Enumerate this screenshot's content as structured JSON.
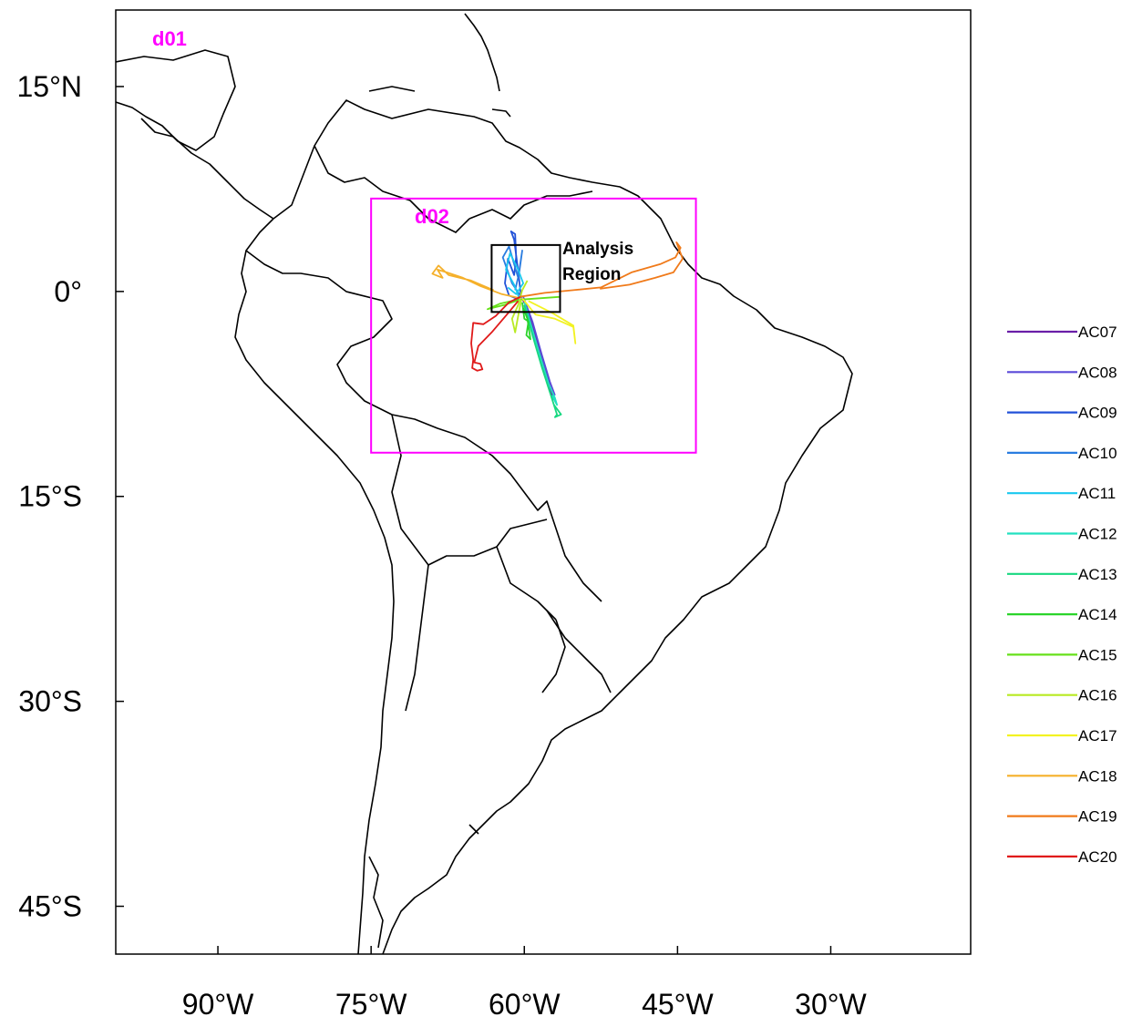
{
  "map": {
    "domains": [
      {
        "id": "d01",
        "label": "d01",
        "color": "#ff00ff"
      },
      {
        "id": "d02",
        "label": "d02",
        "color": "#ff00ff",
        "bounds": {
          "lon_min": -75,
          "lon_max": -43.2,
          "lat_min": -11.8,
          "lat_max": 6.8
        }
      }
    ],
    "analysis_region": {
      "label_line1": "Analysis",
      "label_line2": "Region",
      "bounds": {
        "lon_min": -63.2,
        "lon_max": -56.5,
        "lat_min": -1.5,
        "lat_max": 3.4
      }
    },
    "lat_ticks": [
      {
        "value": 15,
        "label": "15°N"
      },
      {
        "value": 0,
        "label": "0°"
      },
      {
        "value": -15,
        "label": "15°S"
      },
      {
        "value": -30,
        "label": "30°S"
      },
      {
        "value": -45,
        "label": "45°S"
      }
    ],
    "lon_ticks": [
      {
        "value": -90,
        "label": "90°W"
      },
      {
        "value": -75,
        "label": "75°W"
      },
      {
        "value": -60,
        "label": "60°W"
      },
      {
        "value": -45,
        "label": "45°W"
      },
      {
        "value": -30,
        "label": "30°W"
      }
    ],
    "extent": {
      "lon_min": -100,
      "lon_max": -16.3,
      "lat_min": -48.5,
      "lat_max": 20.6
    }
  },
  "flights": [
    {
      "name": "AC07",
      "color": "#6a1fa8",
      "path": [
        [
          -60.2,
          -0.5
        ],
        [
          -59.6,
          -1.5
        ],
        [
          -59.0,
          -3.0
        ],
        [
          -58.2,
          -5.2
        ],
        [
          -57.4,
          -7.2
        ],
        [
          -57.1,
          -7.9
        ],
        [
          -57.5,
          -7.3
        ],
        [
          -58.1,
          -5.6
        ],
        [
          -59.2,
          -2.8
        ],
        [
          -60.0,
          -1.0
        ]
      ]
    },
    {
      "name": "AC08",
      "color": "#5b4ad8",
      "path": [
        [
          -60.1,
          -0.4
        ],
        [
          -59.2,
          -2.2
        ],
        [
          -58.3,
          -4.6
        ],
        [
          -57.5,
          -6.6
        ],
        [
          -57.0,
          -7.6
        ]
      ]
    },
    {
      "name": "AC09",
      "color": "#2252d8",
      "path": [
        [
          -60.3,
          -0.5
        ],
        [
          -60.6,
          1.5
        ],
        [
          -61.0,
          3.8
        ],
        [
          -61.3,
          4.4
        ],
        [
          -60.9,
          4.2
        ],
        [
          -60.8,
          2.5
        ],
        [
          -61.0,
          1.2
        ],
        [
          -61.6,
          2.4
        ],
        [
          -61.9,
          0.6
        ],
        [
          -61.5,
          -0.3
        ],
        [
          -60.5,
          -0.6
        ]
      ]
    },
    {
      "name": "AC10",
      "color": "#2a7de0",
      "path": [
        [
          -60.4,
          -0.3
        ],
        [
          -61.2,
          0.6
        ],
        [
          -62.1,
          2.5
        ],
        [
          -61.5,
          3.3
        ],
        [
          -61.0,
          2.0
        ],
        [
          -60.6,
          1.0
        ],
        [
          -60.2,
          3.0
        ],
        [
          -60.5,
          1.4
        ],
        [
          -60.9,
          0.1
        ]
      ]
    },
    {
      "name": "AC11",
      "color": "#1ac8ef",
      "path": [
        [
          -60.5,
          -0.5
        ],
        [
          -61.0,
          0.5
        ],
        [
          -61.8,
          1.6
        ],
        [
          -61.4,
          2.8
        ],
        [
          -60.6,
          1.6
        ],
        [
          -60.1,
          0.6
        ],
        [
          -60.8,
          -0.2
        ],
        [
          -61.6,
          0.3
        ]
      ]
    },
    {
      "name": "AC12",
      "color": "#22e0c0",
      "path": [
        [
          -60.0,
          -0.8
        ],
        [
          -59.4,
          -2.3
        ],
        [
          -58.5,
          -4.6
        ],
        [
          -57.6,
          -6.8
        ],
        [
          -57.0,
          -7.8
        ],
        [
          -56.8,
          -8.3
        ],
        [
          -57.3,
          -7.6
        ]
      ]
    },
    {
      "name": "AC13",
      "color": "#17d880",
      "path": [
        [
          -60.0,
          -1.0
        ],
        [
          -59.2,
          -3.2
        ],
        [
          -58.3,
          -5.5
        ],
        [
          -57.4,
          -7.6
        ],
        [
          -56.8,
          -9.0
        ],
        [
          -57.0,
          -9.2
        ],
        [
          -56.4,
          -9.0
        ],
        [
          -57.1,
          -8.3
        ]
      ]
    },
    {
      "name": "AC14",
      "color": "#2bd42b",
      "path": [
        [
          -60.2,
          -0.8
        ],
        [
          -60.0,
          -2.0
        ],
        [
          -59.6,
          -2.2
        ],
        [
          -59.8,
          -3.2
        ],
        [
          -59.4,
          -3.5
        ],
        [
          -59.7,
          -2.0
        ],
        [
          -60.1,
          -1.2
        ]
      ]
    },
    {
      "name": "AC15",
      "color": "#66e01a",
      "path": [
        [
          -60.6,
          -0.6
        ],
        [
          -62.4,
          -0.9
        ],
        [
          -63.6,
          -1.3
        ],
        [
          -62.0,
          -1.0
        ],
        [
          -60.4,
          -0.6
        ],
        [
          -58.5,
          -0.5
        ],
        [
          -56.6,
          -0.4
        ]
      ]
    },
    {
      "name": "AC16",
      "color": "#b8ea22",
      "path": [
        [
          -60.3,
          -0.6
        ],
        [
          -60.7,
          -2.2
        ],
        [
          -60.9,
          -3.0
        ],
        [
          -61.2,
          -2.0
        ],
        [
          -60.6,
          -1.0
        ],
        [
          -60.2,
          0.1
        ],
        [
          -59.7,
          0.8
        ]
      ]
    },
    {
      "name": "AC17",
      "color": "#f2f222",
      "path": [
        [
          -60.2,
          -0.5
        ],
        [
          -58.9,
          -1.7
        ],
        [
          -57.0,
          -2.0
        ],
        [
          -55.2,
          -2.6
        ],
        [
          -55.0,
          -3.8
        ],
        [
          -55.2,
          -2.5
        ],
        [
          -57.2,
          -1.6
        ],
        [
          -59.6,
          -0.7
        ]
      ]
    },
    {
      "name": "AC18",
      "color": "#f5b02a",
      "path": [
        [
          -60.4,
          -0.5
        ],
        [
          -62.2,
          -0.2
        ],
        [
          -64.3,
          0.4
        ],
        [
          -66.0,
          1.0
        ],
        [
          -67.6,
          1.4
        ],
        [
          -68.5,
          1.6
        ],
        [
          -68.0,
          1.0
        ],
        [
          -69.0,
          1.3
        ],
        [
          -68.4,
          1.9
        ],
        [
          -67.4,
          1.2
        ],
        [
          -65.2,
          0.8
        ],
        [
          -63.0,
          0.1
        ]
      ]
    },
    {
      "name": "AC19",
      "color": "#f07a1a",
      "path": [
        [
          -60.5,
          -0.4
        ],
        [
          -58.0,
          -0.1
        ],
        [
          -55.2,
          0.1
        ],
        [
          -52.5,
          0.3
        ],
        [
          -49.5,
          1.4
        ],
        [
          -46.7,
          2.0
        ],
        [
          -45.2,
          2.5
        ],
        [
          -44.7,
          3.2
        ],
        [
          -45.1,
          3.6
        ],
        [
          -44.5,
          2.4
        ],
        [
          -45.4,
          1.4
        ],
        [
          -47.2,
          1.0
        ],
        [
          -49.7,
          0.5
        ],
        [
          -52.6,
          0.2
        ]
      ]
    },
    {
      "name": "AC20",
      "color": "#e01a1a",
      "path": [
        [
          -60.4,
          -0.4
        ],
        [
          -61.5,
          -0.8
        ],
        [
          -62.8,
          -1.8
        ],
        [
          -64.0,
          -2.4
        ],
        [
          -65.0,
          -2.3
        ],
        [
          -65.2,
          -3.8
        ],
        [
          -65.0,
          -5.0
        ],
        [
          -65.1,
          -5.6
        ],
        [
          -64.6,
          -5.8
        ],
        [
          -64.1,
          -5.7
        ],
        [
          -64.3,
          -5.3
        ],
        [
          -64.9,
          -5.2
        ],
        [
          -64.5,
          -4.0
        ],
        [
          -63.2,
          -3.0
        ],
        [
          -61.6,
          -1.6
        ],
        [
          -60.6,
          -0.7
        ]
      ]
    }
  ]
}
